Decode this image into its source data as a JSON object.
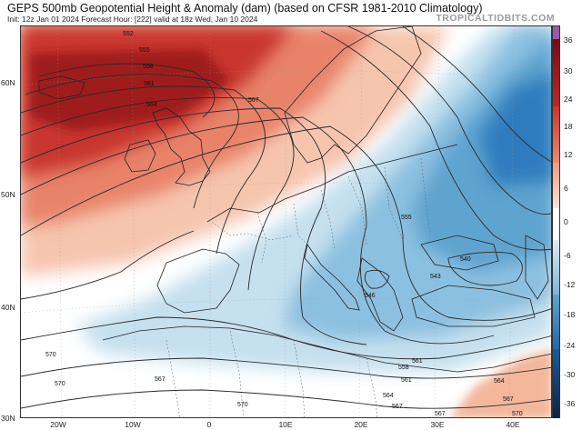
{
  "header": {
    "title": "GEPS 500mb Geopotential Height & Anomaly (dam) (based on CFSR 1981-2010 Climatology)",
    "subtitle": "Init: 12z Jan 01 2024   Forecast Hour: [222]   valid at 18z Wed, Jan 10 2024",
    "credit": "TROPICALTIDBITS.COM"
  },
  "map": {
    "lat_labels": [
      "60N",
      "50N",
      "40N",
      "30N"
    ],
    "lon_labels": [
      "20W",
      "10W",
      "0",
      "10E",
      "20E",
      "30E",
      "40E"
    ],
    "contour_labels": [
      "552",
      "555",
      "558",
      "561",
      "564",
      "567",
      "570",
      "555",
      "546",
      "543",
      "540",
      "558",
      "561",
      "564",
      "567",
      "570",
      "570",
      "567",
      "567",
      "561",
      "564",
      "567",
      "570"
    ]
  },
  "colorbar": {
    "ticks": [
      "36",
      "30",
      "24",
      "18",
      "12",
      "6",
      "0",
      "-6",
      "-12",
      "-18",
      "-24",
      "-30",
      "-36"
    ],
    "colors": {
      "top_purple": "#9b59a6",
      "dark_red": "#8b0d12",
      "red": "#c8342e",
      "salmon": "#e8836a",
      "light_salmon": "#f6c5ae",
      "white": "#ffffff",
      "light_blue": "#c5e0ee",
      "blue": "#5fa3cf",
      "mid_blue": "#2f7bbd",
      "dark_blue": "#124a87",
      "navy": "#0c2346"
    }
  }
}
